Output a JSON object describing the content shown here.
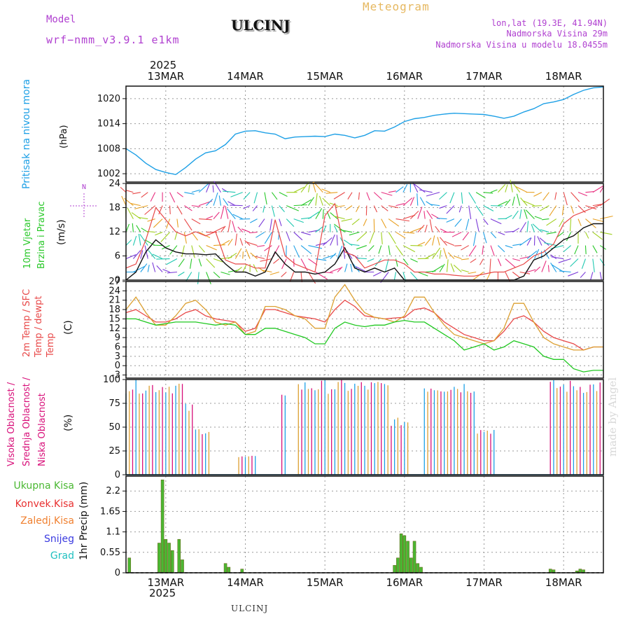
{
  "header": {
    "model_label": "Model",
    "model_name": "wrf−nmm_v3.9.1  e1km",
    "station": "ULCINJ",
    "meteogram_label": "Meteogram",
    "lonlat": "lon,lat (19.3E, 41.94N)",
    "elevation": "Nadmorska Visina 29m",
    "model_elevation": "Nadmorska Visina u modelu 18.0455m",
    "year_top": "2025",
    "year_bottom": "2025",
    "footer_station": "ULCINJ",
    "watermark": "made by Angel"
  },
  "colors": {
    "pressure": "#1ea0e6",
    "temp2m": "#e84848",
    "sfc": "#dca032",
    "dew": "#20c820",
    "high_cloud": "#1ea0e6",
    "mid_cloud": "#dca032",
    "low_cloud": "#d8107a",
    "precip_total": "#4ab832",
    "precip_conv": "#e83030",
    "precip_frozen": "#f08030",
    "snow": "#3a3ae0",
    "hail": "#20c0c0",
    "axis_label_purple": "#b040d0"
  },
  "day_labels": [
    "13MAR",
    "14MAR",
    "15MAR",
    "16MAR",
    "17MAR",
    "18MAR"
  ],
  "chart_data": [
    {
      "type": "line",
      "id": "pressure",
      "ylabel": "Pritisak na nivou mora",
      "unit": "(hPa)",
      "yticks": [
        1002,
        1008,
        1014,
        1020
      ],
      "ylim": [
        1000,
        1023
      ],
      "x": [
        0,
        3,
        6,
        9,
        12,
        15,
        18,
        21,
        24,
        27,
        30,
        33,
        36,
        39,
        42,
        45,
        48,
        51,
        54,
        57,
        60,
        63,
        66,
        69,
        72,
        75,
        78,
        81,
        84,
        87,
        90,
        93,
        96,
        99,
        102,
        105,
        108,
        111,
        114,
        117,
        120,
        123,
        126,
        129,
        132,
        135,
        138,
        141,
        144
      ],
      "values": [
        1008,
        1006.5,
        1004.5,
        1003,
        1002.3,
        1001.8,
        1003.5,
        1005.5,
        1007,
        1007.5,
        1009,
        1011.5,
        1012.2,
        1012.3,
        1011.8,
        1011.5,
        1010.4,
        1010.8,
        1010.9,
        1011,
        1010.9,
        1011.5,
        1011.2,
        1010.6,
        1011.2,
        1012.3,
        1012.2,
        1013.2,
        1014.5,
        1015.2,
        1015.5,
        1016,
        1016.3,
        1016.5,
        1016.4,
        1016.3,
        1016.2,
        1015.8,
        1015.3,
        1015.8,
        1016.8,
        1017.6,
        1018.8,
        1019.2,
        1019.8,
        1021,
        1022,
        1022.6,
        1022.8
      ]
    },
    {
      "type": "line",
      "id": "wind",
      "ylabel": "10m Vjetar Brzina i Pravac",
      "unit": "(m/s)",
      "compass": "N",
      "yticks": [
        0,
        6,
        12,
        18,
        24
      ],
      "ylim": [
        0,
        24
      ],
      "series": [
        {
          "name": "speed",
          "x": [
            0,
            3,
            6,
            9,
            12,
            15,
            18,
            21,
            24,
            27,
            30,
            33,
            36,
            39,
            42,
            45,
            48,
            51,
            54,
            57,
            60,
            63,
            66,
            69,
            72,
            75,
            78,
            81,
            84,
            87,
            90,
            93,
            96,
            99,
            102,
            105,
            108,
            111,
            114,
            117,
            120,
            123,
            126,
            129,
            132,
            135,
            138,
            141,
            144
          ],
          "values": [
            0,
            2,
            7,
            10,
            8,
            7,
            6.5,
            6.5,
            6.3,
            6.5,
            4,
            2,
            2,
            1,
            2,
            7,
            4,
            2,
            2,
            1.5,
            2,
            4,
            8,
            3,
            2,
            3,
            2,
            3,
            0,
            0,
            0,
            0,
            0,
            0,
            0,
            0,
            0,
            0,
            0,
            0,
            1,
            5,
            6,
            8,
            10,
            11,
            13,
            14,
            14
          ]
        },
        {
          "name": "gust",
          "x": [
            0,
            3,
            6,
            9,
            12,
            15,
            18,
            21,
            24,
            27,
            30,
            33,
            36,
            39,
            42,
            45,
            48,
            51,
            54,
            57,
            60,
            63,
            66,
            69,
            72,
            75,
            78,
            81,
            84,
            87,
            90,
            93,
            96,
            99,
            102,
            105,
            108,
            111,
            114,
            117,
            120,
            123,
            126,
            129,
            132,
            135,
            138,
            141,
            144
          ],
          "values": [
            3,
            4,
            10,
            18,
            15,
            12,
            11,
            12,
            11,
            12,
            5,
            4,
            4,
            3,
            3,
            15,
            6,
            4,
            3,
            2,
            16,
            19,
            7,
            6,
            3,
            4,
            5,
            5,
            4,
            2,
            2,
            1.5,
            1.5,
            1.2,
            1,
            1,
            1.5,
            2,
            2,
            3,
            4,
            6,
            7,
            9,
            14,
            16,
            17,
            18,
            19
          ]
        }
      ]
    },
    {
      "type": "line",
      "id": "temperature",
      "ylabel": "2m Temp / SFC Temp / dewpt Temp",
      "unit": "(C)",
      "yticks": [
        -3,
        0,
        3,
        6,
        9,
        12,
        15,
        18,
        21,
        24,
        27
      ],
      "ylim": [
        -4,
        27
      ],
      "series": [
        {
          "name": "2m Temp",
          "x": [
            0,
            3,
            6,
            9,
            12,
            15,
            18,
            21,
            24,
            27,
            30,
            33,
            36,
            39,
            42,
            45,
            48,
            51,
            54,
            57,
            60,
            63,
            66,
            69,
            72,
            75,
            78,
            81,
            84,
            87,
            90,
            93,
            96,
            99,
            102,
            105,
            108,
            111,
            114,
            117,
            120,
            123,
            126,
            129,
            132,
            135,
            138,
            141,
            144
          ],
          "values": [
            17,
            18,
            16,
            14,
            14,
            15,
            17,
            18,
            16,
            15,
            14.5,
            14,
            11,
            12,
            18,
            18,
            17,
            16,
            15.5,
            15,
            14,
            18,
            21,
            19,
            16,
            15.5,
            15,
            15.3,
            15.5,
            18,
            18.5,
            17,
            14,
            12,
            10,
            9,
            8,
            8,
            11,
            15,
            16,
            14,
            11,
            9,
            8,
            7,
            5,
            6,
            6
          ]
        },
        {
          "name": "SFC Temp",
          "x": [
            0,
            3,
            6,
            9,
            12,
            15,
            18,
            21,
            24,
            27,
            30,
            33,
            36,
            39,
            42,
            45,
            48,
            51,
            54,
            57,
            60,
            63,
            66,
            69,
            72,
            75,
            78,
            81,
            84,
            87,
            90,
            93,
            96,
            99,
            102,
            105,
            108,
            111,
            114,
            117,
            120,
            123,
            126,
            129,
            132,
            135,
            138,
            141,
            144
          ],
          "values": [
            18,
            22,
            17,
            13,
            13,
            16,
            20,
            21,
            18,
            14,
            13,
            14,
            10,
            11,
            19,
            19,
            18,
            16,
            15,
            12,
            12,
            22,
            26,
            21,
            17,
            15.5,
            15,
            14,
            16,
            22,
            22,
            17,
            13,
            10,
            9,
            8,
            7,
            8,
            12,
            20,
            20,
            14,
            9,
            7,
            6,
            5,
            5,
            6,
            6
          ]
        },
        {
          "name": "dewpt Temp",
          "x": [
            0,
            3,
            6,
            9,
            12,
            15,
            18,
            21,
            24,
            27,
            30,
            33,
            36,
            39,
            42,
            45,
            48,
            51,
            54,
            57,
            60,
            63,
            66,
            69,
            72,
            75,
            78,
            81,
            84,
            87,
            90,
            93,
            96,
            99,
            102,
            105,
            108,
            111,
            114,
            117,
            120,
            123,
            126,
            129,
            132,
            135,
            138,
            141,
            144
          ],
          "values": [
            15,
            15,
            14,
            13,
            13.5,
            14,
            14,
            14,
            13.5,
            13,
            13.5,
            13,
            10,
            10,
            12,
            12,
            11,
            10,
            9,
            7,
            7,
            12,
            14,
            13,
            12.5,
            13,
            13,
            14,
            14.5,
            14,
            14,
            12,
            10,
            8,
            5,
            6,
            7,
            5,
            6,
            8,
            7,
            6,
            3,
            2,
            2,
            -1,
            -2,
            -1.5,
            -1.5
          ]
        }
      ]
    },
    {
      "type": "bar",
      "id": "clouds",
      "ylabel": "Visoka Oblacnost / Srednja Oblacnost / Niska Oblacnost",
      "unit": "(%)",
      "yticks": [
        0,
        25,
        50,
        75,
        100
      ],
      "ylim": [
        0,
        100
      ]
    },
    {
      "type": "bar",
      "id": "precip",
      "ylabel": "1hr Precip",
      "unit": "(mm)",
      "legend": [
        "Ukupna Kisa",
        "Konvek.Kisa",
        "Zaledj.Kisa",
        "Snijeg",
        "Grad"
      ],
      "yticks": [
        0,
        0.55,
        1.1,
        1.65,
        2.2
      ],
      "ylim": [
        0,
        2.6
      ]
    }
  ]
}
